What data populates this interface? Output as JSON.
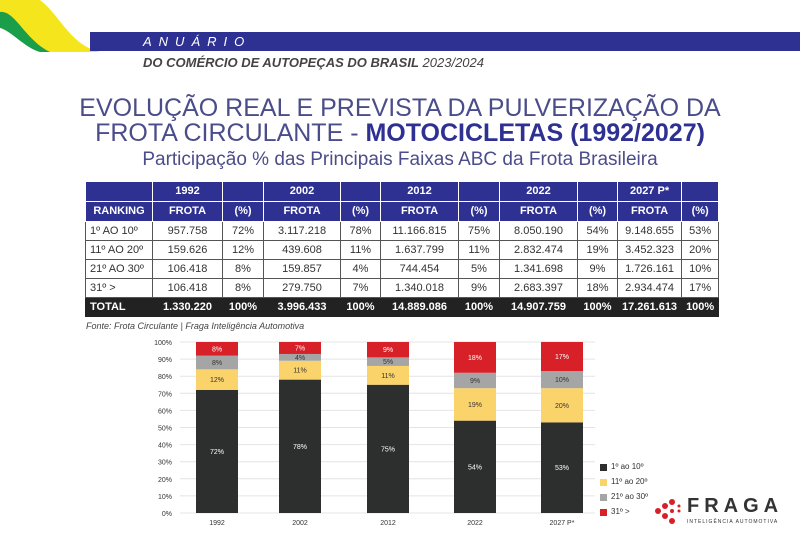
{
  "header": {
    "anuario": "ANUÁRIO",
    "subtitle_bold": "DO COMÉRCIO DE AUTOPEÇAS DO BRASIL",
    "subtitle_year": "2023/2024",
    "colors": {
      "band": "#2e3192",
      "yellow": "#f5e51c",
      "green": "#1a9e4a"
    }
  },
  "title": {
    "line1": "EVOLUÇÃO REAL E PREVISTA DA PULVERIZAÇÃO DA",
    "line2_normal": "FROTA CIRCULANTE - ",
    "line2_bold": "MOTOCICLETAS (1992/2027)",
    "line3": "Participação % das Principais Faixas ABC da Frota Brasileira"
  },
  "table": {
    "years": [
      "1992",
      "2002",
      "2012",
      "2022",
      "2027 P*"
    ],
    "ranking_label": "RANKING",
    "frota_label": "FROTA",
    "pct_label": "(%)",
    "rows": [
      {
        "rank": "1º AO 10º",
        "cells": [
          "957.758",
          "72%",
          "3.117.218",
          "78%",
          "11.166.815",
          "75%",
          "8.050.190",
          "54%",
          "9.148.655",
          "53%"
        ]
      },
      {
        "rank": "11º AO 20º",
        "cells": [
          "159.626",
          "12%",
          "439.608",
          "11%",
          "1.637.799",
          "11%",
          "2.832.474",
          "19%",
          "3.452.323",
          "20%"
        ]
      },
      {
        "rank": "21º AO 30º",
        "cells": [
          "106.418",
          "8%",
          "159.857",
          "4%",
          "744.454",
          "5%",
          "1.341.698",
          "9%",
          "1.726.161",
          "10%"
        ]
      },
      {
        "rank": "31º >",
        "cells": [
          "106.418",
          "8%",
          "279.750",
          "7%",
          "1.340.018",
          "9%",
          "2.683.397",
          "18%",
          "2.934.474",
          "17%"
        ]
      }
    ],
    "total": {
      "rank": "TOTAL",
      "cells": [
        "1.330.220",
        "100%",
        "3.996.433",
        "100%",
        "14.889.086",
        "100%",
        "14.907.759",
        "100%",
        "17.261.613",
        "100%"
      ]
    }
  },
  "source": "Fonte: Frota Circulante | Fraga Inteligência Automotiva",
  "chart_data": {
    "type": "bar",
    "stacked": true,
    "categories": [
      "1992",
      "2002",
      "2012",
      "2022",
      "2027 P*"
    ],
    "series": [
      {
        "name": "1º ao  10º",
        "color": "#2d2f2f",
        "values": [
          72,
          78,
          75,
          54,
          53
        ]
      },
      {
        "name": "11º ao 20º",
        "color": "#fbd36b",
        "values": [
          12,
          11,
          11,
          19,
          20
        ]
      },
      {
        "name": "21º ao 30º",
        "color": "#a5a5a5",
        "values": [
          8,
          4,
          5,
          9,
          10
        ]
      },
      {
        "name": "31º >",
        "color": "#d72027",
        "values": [
          8,
          7,
          9,
          18,
          17
        ]
      }
    ],
    "yticks": [
      "0%",
      "10%",
      "20%",
      "30%",
      "40%",
      "50%",
      "60%",
      "70%",
      "80%",
      "90%",
      "100%"
    ],
    "ylim": [
      0,
      100
    ],
    "grid": true,
    "legend": "right"
  },
  "logo": {
    "name": "FRAGA",
    "tagline": "INTELIGÊNCIA AUTOMOTIVA"
  }
}
